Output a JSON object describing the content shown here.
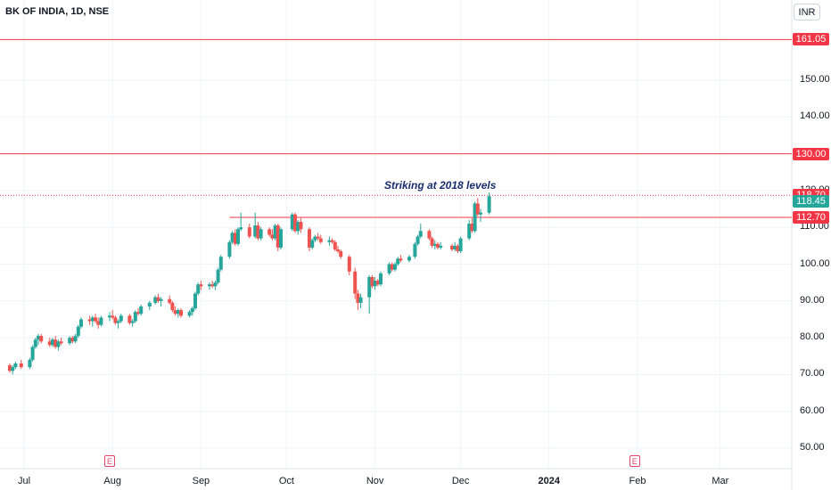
{
  "header": {
    "symbol": "BK OF INDIA, 1D, NSE",
    "currency": "INR"
  },
  "annotation": "Striking at 2018 levels",
  "colors": {
    "up": "#26a69a",
    "down": "#ef5350",
    "level": "#f23645",
    "grid": "#f0f3fa",
    "annotation": "#1a2d6e"
  },
  "earnings_markers": [
    "E",
    "E"
  ],
  "chart_data": {
    "type": "candlestick",
    "title": "BK OF INDIA, 1D, NSE",
    "ylim": [
      45,
      168
    ],
    "y_ticks": [
      "50.00",
      "60.00",
      "70.00",
      "80.00",
      "90.00",
      "100.00",
      "110.00",
      "120.00",
      "140.00",
      "150.00"
    ],
    "x_ticks": [
      {
        "label": "Jul",
        "date": "2023-07-01"
      },
      {
        "label": "Aug",
        "date": "2023-08-01"
      },
      {
        "label": "Sep",
        "date": "2023-09-01"
      },
      {
        "label": "Oct",
        "date": "2023-10-01"
      },
      {
        "label": "Nov",
        "date": "2023-11-01"
      },
      {
        "label": "Dec",
        "date": "2023-12-01"
      },
      {
        "label": "2024",
        "date": "2024-01-01",
        "bold": true
      },
      {
        "label": "Feb",
        "date": "2024-02-01"
      },
      {
        "label": "Mar",
        "date": "2024-03-01"
      }
    ],
    "levels": [
      {
        "label": "161.05",
        "value": 161.05
      },
      {
        "label": "130.00",
        "value": 130.0
      },
      {
        "label": "118.70",
        "value": 118.7,
        "dotted": true
      },
      {
        "label": "112.70",
        "value": 112.7,
        "start": "2023-09-11"
      }
    ],
    "last_price": {
      "label": "118.45",
      "value": 118.45
    },
    "earnings_dates": [
      "2023-07-31",
      "2024-01-31"
    ],
    "ohlc": [
      [
        "2023-06-26",
        72.5,
        73.0,
        70.5,
        71.0
      ],
      [
        "2023-06-27",
        71.0,
        72.5,
        70.0,
        72.0
      ],
      [
        "2023-06-28",
        72.0,
        73.5,
        71.5,
        73.0
      ],
      [
        "2023-06-30",
        73.0,
        74.0,
        71.5,
        72.0
      ],
      [
        "2023-07-03",
        72.0,
        74.5,
        71.5,
        74.0
      ],
      [
        "2023-07-04",
        74.0,
        78.0,
        73.5,
        77.5
      ],
      [
        "2023-07-05",
        77.5,
        80.0,
        77.0,
        79.5
      ],
      [
        "2023-07-06",
        79.5,
        81.0,
        78.0,
        80.5
      ],
      [
        "2023-07-07",
        80.5,
        81.0,
        78.5,
        79.0
      ],
      [
        "2023-07-10",
        79.0,
        80.0,
        77.5,
        78.0
      ],
      [
        "2023-07-11",
        78.0,
        80.0,
        77.5,
        79.5
      ],
      [
        "2023-07-12",
        79.5,
        80.5,
        77.0,
        77.5
      ],
      [
        "2023-07-13",
        77.5,
        79.5,
        76.5,
        79.0
      ],
      [
        "2023-07-14",
        79.0,
        80.0,
        78.0,
        78.5
      ],
      [
        "2023-07-17",
        78.5,
        80.5,
        78.0,
        80.0
      ],
      [
        "2023-07-18",
        80.0,
        80.5,
        78.5,
        79.0
      ],
      [
        "2023-07-19",
        79.0,
        81.0,
        78.5,
        80.5
      ],
      [
        "2023-07-20",
        80.5,
        83.5,
        80.0,
        83.0
      ],
      [
        "2023-07-21",
        83.0,
        85.5,
        82.5,
        85.0
      ],
      [
        "2023-07-24",
        85.0,
        86.0,
        83.5,
        84.5
      ],
      [
        "2023-07-25",
        84.5,
        86.0,
        83.0,
        85.5
      ],
      [
        "2023-07-26",
        85.5,
        86.5,
        84.0,
        84.5
      ],
      [
        "2023-07-27",
        84.5,
        85.5,
        82.5,
        83.5
      ],
      [
        "2023-07-28",
        83.5,
        86.0,
        83.0,
        85.5
      ],
      [
        "2023-07-31",
        85.5,
        87.0,
        84.5,
        86.0
      ],
      [
        "2023-08-01",
        86.0,
        87.5,
        85.0,
        85.5
      ],
      [
        "2023-08-02",
        85.5,
        86.0,
        83.5,
        84.0
      ],
      [
        "2023-08-03",
        84.0,
        85.0,
        82.5,
        84.5
      ],
      [
        "2023-08-04",
        84.5,
        86.5,
        84.0,
        86.0
      ],
      [
        "2023-08-07",
        86.0,
        86.5,
        83.5,
        84.0
      ],
      [
        "2023-08-08",
        84.0,
        85.0,
        83.0,
        84.5
      ],
      [
        "2023-08-09",
        84.5,
        87.5,
        84.0,
        87.0
      ],
      [
        "2023-08-10",
        87.0,
        88.0,
        86.0,
        86.5
      ],
      [
        "2023-08-11",
        86.5,
        89.0,
        86.0,
        88.5
      ],
      [
        "2023-08-14",
        88.5,
        90.0,
        87.5,
        89.5
      ],
      [
        "2023-08-16",
        89.5,
        91.5,
        89.0,
        91.0
      ],
      [
        "2023-08-17",
        91.0,
        92.0,
        89.5,
        90.0
      ],
      [
        "2023-08-18",
        90.0,
        91.0,
        88.5,
        90.5
      ],
      [
        "2023-08-21",
        90.5,
        91.5,
        89.0,
        89.5
      ],
      [
        "2023-08-22",
        89.5,
        90.0,
        87.0,
        87.5
      ],
      [
        "2023-08-23",
        87.5,
        88.5,
        86.0,
        86.5
      ],
      [
        "2023-08-24",
        86.5,
        88.0,
        85.5,
        87.5
      ],
      [
        "2023-08-25",
        87.5,
        88.0,
        85.5,
        86.0
      ],
      [
        "2023-08-28",
        86.0,
        87.5,
        85.5,
        87.0
      ],
      [
        "2023-08-29",
        87.0,
        88.5,
        86.0,
        88.0
      ],
      [
        "2023-08-30",
        88.0,
        92.5,
        87.5,
        92.0
      ],
      [
        "2023-08-31",
        92.0,
        95.0,
        91.5,
        94.5
      ],
      [
        "2023-09-01",
        94.5,
        95.5,
        93.0,
        94.0
      ],
      [
        "2023-09-04",
        94.0,
        95.0,
        93.0,
        94.5
      ],
      [
        "2023-09-05",
        94.5,
        95.5,
        93.5,
        94.0
      ],
      [
        "2023-09-06",
        94.0,
        95.5,
        93.0,
        95.0
      ],
      [
        "2023-09-07",
        95.0,
        99.0,
        94.5,
        98.5
      ],
      [
        "2023-09-08",
        98.5,
        102.5,
        98.0,
        102.0
      ],
      [
        "2023-09-11",
        102.0,
        106.5,
        101.5,
        106.0
      ],
      [
        "2023-09-12",
        106.0,
        109.0,
        105.5,
        108.5
      ],
      [
        "2023-09-13",
        108.5,
        109.5,
        105.0,
        105.5
      ],
      [
        "2023-09-14",
        105.5,
        110.0,
        105.0,
        109.5
      ],
      [
        "2023-09-15",
        109.5,
        114.0,
        109.0,
        110.0
      ],
      [
        "2023-09-18",
        110.0,
        111.0,
        107.0,
        107.5
      ],
      [
        "2023-09-20",
        107.5,
        114.0,
        107.0,
        110.5
      ],
      [
        "2023-09-21",
        110.5,
        111.5,
        106.5,
        107.0
      ],
      [
        "2023-09-22",
        107.0,
        110.0,
        106.5,
        109.5
      ],
      [
        "2023-09-25",
        109.5,
        110.0,
        107.5,
        108.0
      ],
      [
        "2023-09-26",
        108.0,
        109.5,
        106.5,
        107.0
      ],
      [
        "2023-09-27",
        107.0,
        111.0,
        106.5,
        110.5
      ],
      [
        "2023-09-28",
        110.5,
        111.0,
        103.5,
        104.5
      ],
      [
        "2023-09-29",
        104.5,
        110.0,
        104.0,
        109.5
      ],
      [
        "2023-10-03",
        109.5,
        114.0,
        109.0,
        113.5
      ],
      [
        "2023-10-04",
        113.5,
        114.0,
        108.5,
        109.0
      ],
      [
        "2023-10-05",
        109.0,
        112.0,
        108.0,
        111.5
      ],
      [
        "2023-10-06",
        111.5,
        112.5,
        108.5,
        109.5
      ],
      [
        "2023-10-09",
        109.5,
        110.0,
        103.5,
        104.5
      ],
      [
        "2023-10-10",
        104.5,
        107.0,
        104.0,
        106.5
      ],
      [
        "2023-10-11",
        106.5,
        108.0,
        106.0,
        107.5
      ],
      [
        "2023-10-12",
        107.5,
        108.5,
        106.5,
        107.0
      ],
      [
        "2023-10-13",
        107.0,
        108.0,
        105.5,
        106.0
      ],
      [
        "2023-10-16",
        106.0,
        107.5,
        105.0,
        106.5
      ],
      [
        "2023-10-17",
        106.5,
        107.0,
        105.5,
        106.0
      ],
      [
        "2023-10-18",
        106.0,
        106.5,
        103.5,
        104.0
      ],
      [
        "2023-10-19",
        104.0,
        105.0,
        103.0,
        103.5
      ],
      [
        "2023-10-20",
        103.5,
        104.0,
        101.5,
        102.0
      ],
      [
        "2023-10-23",
        102.0,
        102.5,
        97.0,
        98.0
      ],
      [
        "2023-10-25",
        98.0,
        99.0,
        90.5,
        92.0
      ],
      [
        "2023-10-26",
        92.0,
        93.0,
        87.5,
        89.5
      ],
      [
        "2023-10-27",
        89.5,
        92.0,
        88.0,
        91.0
      ],
      [
        "2023-10-30",
        91.0,
        97.0,
        86.5,
        96.5
      ],
      [
        "2023-10-31",
        96.5,
        97.0,
        93.5,
        94.0
      ],
      [
        "2023-11-01",
        94.0,
        96.5,
        93.0,
        95.5
      ],
      [
        "2023-11-02",
        95.5,
        96.0,
        94.0,
        94.5
      ],
      [
        "2023-11-03",
        94.5,
        98.0,
        94.0,
        97.5
      ],
      [
        "2023-11-06",
        97.5,
        100.5,
        97.0,
        100.0
      ],
      [
        "2023-11-07",
        100.0,
        100.5,
        98.0,
        98.5
      ],
      [
        "2023-11-08",
        98.5,
        100.5,
        98.0,
        100.0
      ],
      [
        "2023-11-09",
        100.0,
        102.0,
        99.5,
        101.5
      ],
      [
        "2023-11-10",
        101.5,
        102.5,
        100.5,
        101.0
      ],
      [
        "2023-11-13",
        101.0,
        102.5,
        100.5,
        102.0
      ],
      [
        "2023-11-15",
        102.0,
        106.0,
        101.5,
        105.5
      ],
      [
        "2023-11-16",
        105.5,
        108.0,
        105.0,
        107.5
      ],
      [
        "2023-11-17",
        107.5,
        111.0,
        107.0,
        109.0
      ],
      [
        "2023-11-20",
        109.0,
        109.5,
        106.5,
        107.0
      ],
      [
        "2023-11-21",
        107.0,
        107.5,
        104.5,
        105.0
      ],
      [
        "2023-11-22",
        105.0,
        106.5,
        104.0,
        105.5
      ],
      [
        "2023-11-23",
        105.5,
        106.0,
        104.0,
        104.5
      ],
      [
        "2023-11-24",
        104.5,
        106.0,
        104.0,
        105.0
      ],
      [
        "2023-11-28",
        105.0,
        105.5,
        103.5,
        104.0
      ],
      [
        "2023-11-29",
        104.0,
        106.0,
        103.5,
        105.0
      ],
      [
        "2023-11-30",
        105.0,
        105.5,
        103.0,
        103.5
      ],
      [
        "2023-12-01",
        103.5,
        107.5,
        103.0,
        107.0
      ],
      [
        "2023-12-04",
        107.0,
        112.0,
        106.5,
        111.0
      ],
      [
        "2023-12-05",
        111.0,
        112.5,
        108.5,
        109.0
      ],
      [
        "2023-12-06",
        109.0,
        117.0,
        108.5,
        116.5
      ],
      [
        "2023-12-07",
        116.5,
        118.0,
        113.0,
        113.5
      ],
      [
        "2023-12-08",
        113.5,
        115.0,
        111.5,
        114.0
      ],
      [
        "2023-12-11",
        114.0,
        119.5,
        113.5,
        118.45
      ]
    ]
  }
}
